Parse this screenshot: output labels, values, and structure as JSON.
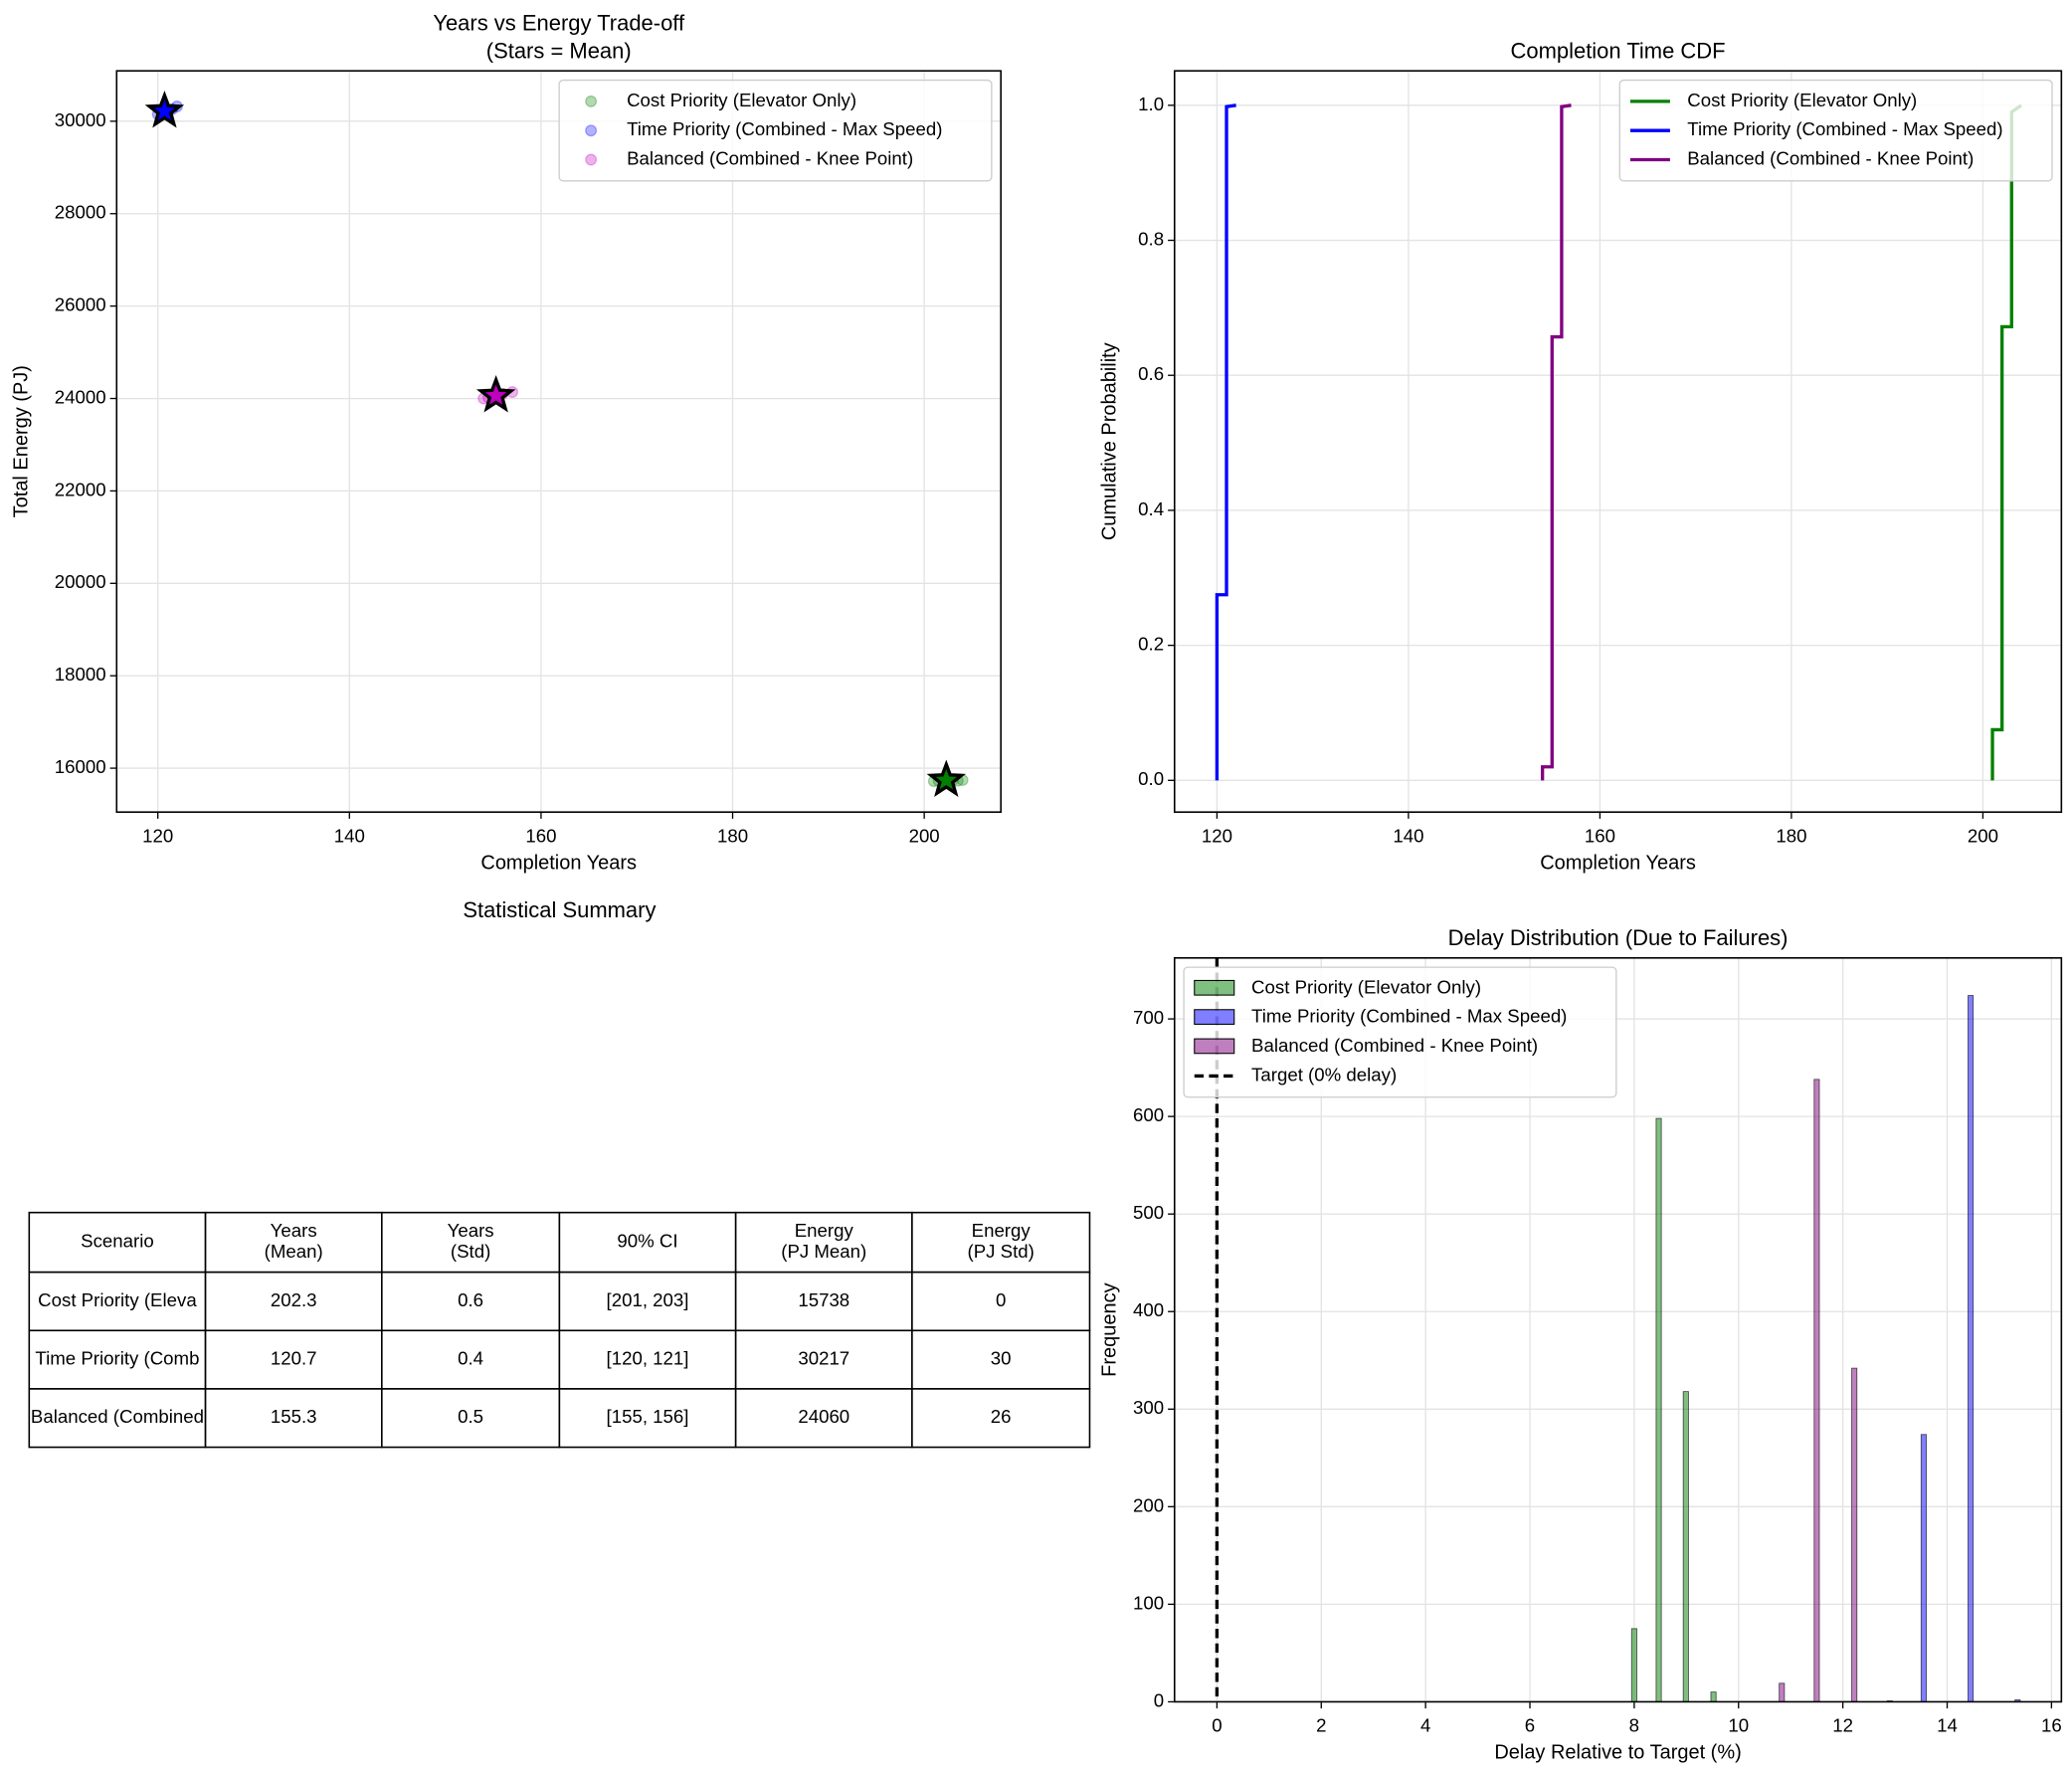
{
  "chart_data": [
    {
      "type": "scatter",
      "title": "Years vs Energy Trade-off",
      "subtitle": "(Stars = Mean)",
      "xlabel": "Completion Years",
      "ylabel": "Total Energy (PJ)",
      "xlim": [
        115.7,
        208.0
      ],
      "ylim": [
        15050,
        31090
      ],
      "xticks": [
        120,
        140,
        160,
        180,
        200
      ],
      "yticks": [
        16000,
        18000,
        20000,
        22000,
        24000,
        26000,
        28000,
        30000
      ],
      "grid": true,
      "legend": "upper right",
      "alpha": 0.3,
      "series": [
        {
          "name": "Cost Priority (Elevator Only)",
          "color": "#008000",
          "x": [
            201,
            202,
            202.5,
            203,
            203.5,
            204,
            202,
            201.5
          ],
          "y": [
            15720,
            15735,
            15740,
            15745,
            15730,
            15742,
            15750,
            15725
          ],
          "mean": {
            "x": 202.3,
            "y": 15738
          }
        },
        {
          "name": "Time Priority (Combined - Max Speed)",
          "color": "#0000ff",
          "x": [
            120,
            120.5,
            121,
            121.5,
            122,
            120.8
          ],
          "y": [
            30150,
            30200,
            30230,
            30260,
            30320,
            30180
          ],
          "mean": {
            "x": 120.7,
            "y": 30217
          }
        },
        {
          "name": "Balanced (Combined - Knee Point)",
          "color": "#bf00bf",
          "x": [
            154,
            154.5,
            155,
            155.5,
            156,
            157
          ],
          "y": [
            24000,
            24020,
            24050,
            24080,
            24100,
            24140
          ],
          "mean": {
            "x": 155.3,
            "y": 24060
          }
        }
      ]
    },
    {
      "type": "line",
      "title": "Completion Time CDF",
      "xlabel": "Completion Years",
      "ylabel": "Cumulative Probability",
      "xlim": [
        115.57,
        208.2
      ],
      "ylim": [
        -0.047,
        1.051
      ],
      "xticks": [
        120,
        140,
        160,
        180,
        200
      ],
      "yticks": [
        {
          "value": 0,
          "label": "0.0"
        },
        {
          "value": 0.2,
          "label": "0.2"
        },
        {
          "value": 0.4,
          "label": "0.4"
        },
        {
          "value": 0.6,
          "label": "0.6"
        },
        {
          "value": 0.8,
          "label": "0.8"
        },
        {
          "value": 1,
          "label": "1.0"
        }
      ],
      "grid": true,
      "legend": "upper right",
      "series": [
        {
          "name": "Cost Priority (Elevator Only)",
          "color": "#008000",
          "x": [
            201,
            201,
            202,
            202,
            203,
            203,
            204
          ],
          "values": [
            0,
            0.075,
            0.075,
            0.672,
            0.672,
            0.99,
            1.0
          ]
        },
        {
          "name": "Time Priority (Combined - Max Speed)",
          "color": "#0000ff",
          "x": [
            120,
            120,
            121,
            121,
            122
          ],
          "values": [
            0,
            0.275,
            0.275,
            0.998,
            1.0
          ]
        },
        {
          "name": "Balanced (Combined - Knee Point)",
          "color": "#800080",
          "x": [
            154,
            154,
            155,
            155,
            156,
            156,
            157
          ],
          "values": [
            0,
            0.02,
            0.02,
            0.657,
            0.657,
            0.998,
            1.0
          ]
        }
      ]
    },
    {
      "type": "table",
      "title": "Statistical Summary",
      "header": [
        [
          "Scenario"
        ],
        [
          "Years",
          "(Mean)"
        ],
        [
          "Years",
          "(Std)"
        ],
        [
          "90% CI"
        ],
        [
          "Energy",
          "(PJ Mean)"
        ],
        [
          "Energy",
          "(PJ Std)"
        ]
      ],
      "rows": [
        [
          "Cost Priority (Eleva",
          "202.3",
          "0.6",
          "[201, 203]",
          "15738",
          "0"
        ],
        [
          "Time Priority (Comb",
          "120.7",
          "0.4",
          "[120, 121]",
          "30217",
          "30"
        ],
        [
          "Balanced (Combined",
          "155.3",
          "0.5",
          "[155, 156]",
          "24060",
          "26"
        ]
      ]
    },
    {
      "type": "histogram",
      "title": "Delay Distribution (Due to Failures)",
      "xlabel": "Delay Relative to Target (%)",
      "ylabel": "Frequency",
      "xlim": [
        -0.813,
        16.19
      ],
      "ylim": [
        0,
        762.5
      ],
      "xticks": [
        0,
        2,
        4,
        6,
        8,
        10,
        12,
        14,
        16
      ],
      "yticks": [
        0,
        100,
        200,
        300,
        400,
        500,
        600,
        700
      ],
      "grid": true,
      "legend": "upper left",
      "alpha": 0.5,
      "series": [
        {
          "name": "Cost Priority (Elevator Only)",
          "color": "#008000",
          "bins": [
            7.95,
            8.05,
            8.42,
            8.52,
            8.94,
            9.04,
            9.47,
            9.57
          ],
          "values": [
            75,
            0,
            598,
            0,
            318,
            0,
            10
          ]
        },
        {
          "name": "Time Priority (Combined - Max Speed)",
          "color": "#0000ff",
          "bins": [
            12.85,
            12.95,
            13.5,
            13.6,
            14.4,
            14.5,
            15.3,
            15.4
          ],
          "values": [
            1,
            0,
            274,
            0,
            724,
            0,
            2
          ]
        },
        {
          "name": "Balanced (Combined - Knee Point)",
          "color": "#800080",
          "bins": [
            10.78,
            10.88,
            11.45,
            11.55,
            12.17,
            12.27
          ],
          "values": [
            19,
            0,
            638,
            0,
            342
          ]
        }
      ],
      "target": {
        "name": "Target (0% delay)",
        "x": 0,
        "color": "#000000"
      }
    }
  ]
}
